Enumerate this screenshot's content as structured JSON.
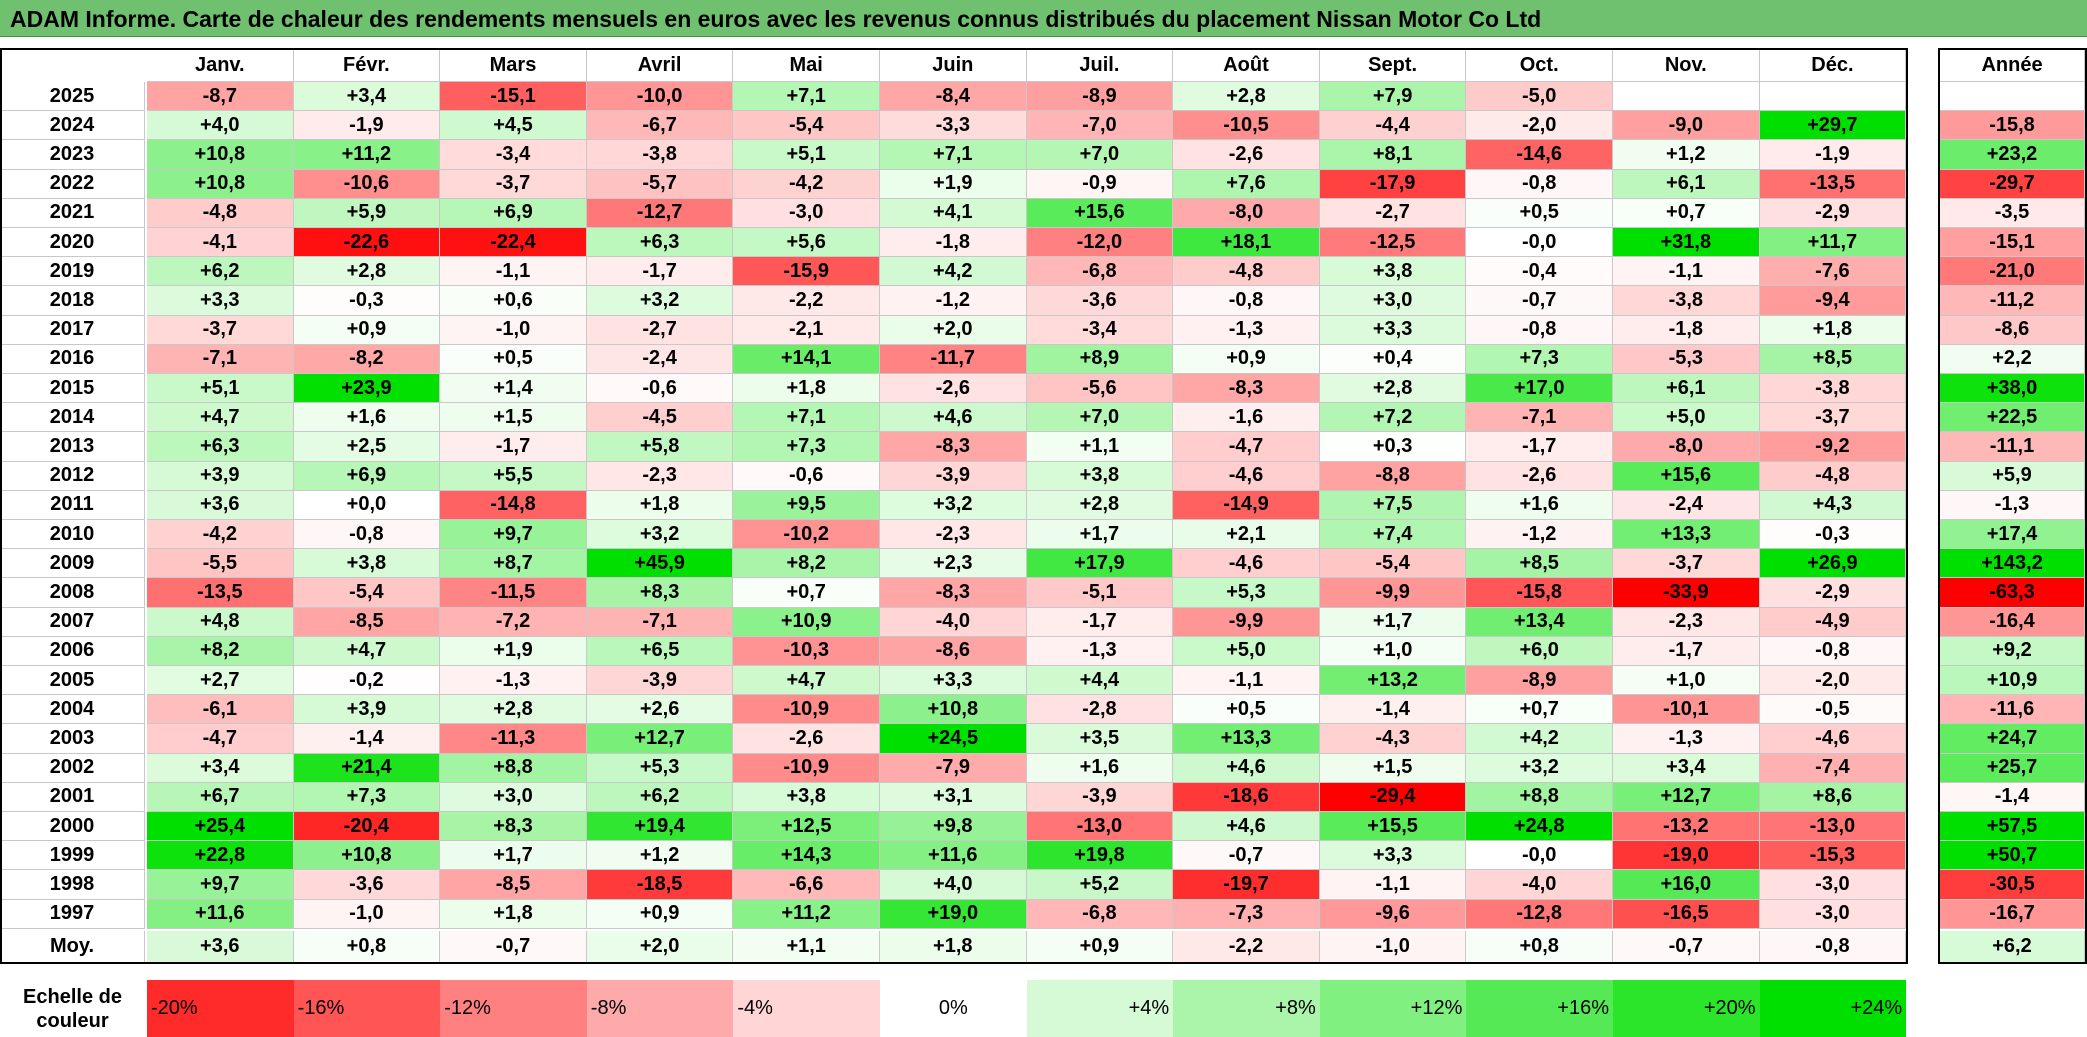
{
  "title": "ADAM Informe. Carte de chaleur des rendements mensuels en euros avec les revenus connus distribués du placement Nissan Motor Co Ltd",
  "chart_data": {
    "type": "heatmap",
    "title": "ADAM Informe. Carte de chaleur des rendements mensuels en euros avec les revenus connus distribués du placement Nissan Motor Co Ltd",
    "months": [
      "Janv.",
      "Févr.",
      "Mars",
      "Avril",
      "Mai",
      "Juin",
      "Juil.",
      "Août",
      "Sept.",
      "Oct.",
      "Nov.",
      "Déc."
    ],
    "year_header": "Année",
    "rows": [
      {
        "year": "2025",
        "values": [
          "-8,7",
          "+3,4",
          "-15,1",
          "-10,0",
          "+7,1",
          "-8,4",
          "-8,9",
          "+2,8",
          "+7,9",
          "-5,0",
          "",
          ""
        ],
        "annual": ""
      },
      {
        "year": "2024",
        "values": [
          "+4,0",
          "-1,9",
          "+4,5",
          "-6,7",
          "-5,4",
          "-3,3",
          "-7,0",
          "-10,5",
          "-4,4",
          "-2,0",
          "-9,0",
          "+29,7"
        ],
        "annual": "-15,8"
      },
      {
        "year": "2023",
        "values": [
          "+10,8",
          "+11,2",
          "-3,4",
          "-3,8",
          "+5,1",
          "+7,1",
          "+7,0",
          "-2,6",
          "+8,1",
          "-14,6",
          "+1,2",
          "-1,9"
        ],
        "annual": "+23,2"
      },
      {
        "year": "2022",
        "values": [
          "+10,8",
          "-10,6",
          "-3,7",
          "-5,7",
          "-4,2",
          "+1,9",
          "-0,9",
          "+7,6",
          "-17,9",
          "-0,8",
          "+6,1",
          "-13,5"
        ],
        "annual": "-29,7"
      },
      {
        "year": "2021",
        "values": [
          "-4,8",
          "+5,9",
          "+6,9",
          "-12,7",
          "-3,0",
          "+4,1",
          "+15,6",
          "-8,0",
          "-2,7",
          "+0,5",
          "+0,7",
          "-2,9"
        ],
        "annual": "-3,5"
      },
      {
        "year": "2020",
        "values": [
          "-4,1",
          "-22,6",
          "-22,4",
          "+6,3",
          "+5,6",
          "-1,8",
          "-12,0",
          "+18,1",
          "-12,5",
          "-0,0",
          "+31,8",
          "+11,7"
        ],
        "annual": "-15,1"
      },
      {
        "year": "2019",
        "values": [
          "+6,2",
          "+2,8",
          "-1,1",
          "-1,7",
          "-15,9",
          "+4,2",
          "-6,8",
          "-4,8",
          "+3,8",
          "-0,4",
          "-1,1",
          "-7,6"
        ],
        "annual": "-21,0"
      },
      {
        "year": "2018",
        "values": [
          "+3,3",
          "-0,3",
          "+0,6",
          "+3,2",
          "-2,2",
          "-1,2",
          "-3,6",
          "-0,8",
          "+3,0",
          "-0,7",
          "-3,8",
          "-9,4"
        ],
        "annual": "-11,2"
      },
      {
        "year": "2017",
        "values": [
          "-3,7",
          "+0,9",
          "-1,0",
          "-2,7",
          "-2,1",
          "+2,0",
          "-3,4",
          "-1,3",
          "+3,3",
          "-0,8",
          "-1,8",
          "+1,8"
        ],
        "annual": "-8,6"
      },
      {
        "year": "2016",
        "values": [
          "-7,1",
          "-8,2",
          "+0,5",
          "-2,4",
          "+14,1",
          "-11,7",
          "+8,9",
          "+0,9",
          "+0,4",
          "+7,3",
          "-5,3",
          "+8,5"
        ],
        "annual": "+2,2"
      },
      {
        "year": "2015",
        "values": [
          "+5,1",
          "+23,9",
          "+1,4",
          "-0,6",
          "+1,8",
          "-2,6",
          "-5,6",
          "-8,3",
          "+2,8",
          "+17,0",
          "+6,1",
          "-3,8"
        ],
        "annual": "+38,0"
      },
      {
        "year": "2014",
        "values": [
          "+4,7",
          "+1,6",
          "+1,5",
          "-4,5",
          "+7,1",
          "+4,6",
          "+7,0",
          "-1,6",
          "+7,2",
          "-7,1",
          "+5,0",
          "-3,7"
        ],
        "annual": "+22,5"
      },
      {
        "year": "2013",
        "values": [
          "+6,3",
          "+2,5",
          "-1,7",
          "+5,8",
          "+7,3",
          "-8,3",
          "+1,1",
          "-4,7",
          "+0,3",
          "-1,7",
          "-8,0",
          "-9,2"
        ],
        "annual": "-11,1"
      },
      {
        "year": "2012",
        "values": [
          "+3,9",
          "+6,9",
          "+5,5",
          "-2,3",
          "-0,6",
          "-3,9",
          "+3,8",
          "-4,6",
          "-8,8",
          "-2,6",
          "+15,6",
          "-4,8"
        ],
        "annual": "+5,9"
      },
      {
        "year": "2011",
        "values": [
          "+3,6",
          "+0,0",
          "-14,8",
          "+1,8",
          "+9,5",
          "+3,2",
          "+2,8",
          "-14,9",
          "+7,5",
          "+1,6",
          "-2,4",
          "+4,3"
        ],
        "annual": "-1,3"
      },
      {
        "year": "2010",
        "values": [
          "-4,2",
          "-0,8",
          "+9,7",
          "+3,2",
          "-10,2",
          "-2,3",
          "+1,7",
          "+2,1",
          "+7,4",
          "-1,2",
          "+13,3",
          "-0,3"
        ],
        "annual": "+17,4"
      },
      {
        "year": "2009",
        "values": [
          "-5,5",
          "+3,8",
          "+8,7",
          "+45,9",
          "+8,2",
          "+2,3",
          "+17,9",
          "-4,6",
          "-5,4",
          "+8,5",
          "-3,7",
          "+26,9"
        ],
        "annual": "+143,2"
      },
      {
        "year": "2008",
        "values": [
          "-13,5",
          "-5,4",
          "-11,5",
          "+8,3",
          "+0,7",
          "-8,3",
          "-5,1",
          "+5,3",
          "-9,9",
          "-15,8",
          "-33,9",
          "-2,9"
        ],
        "annual": "-63,3"
      },
      {
        "year": "2007",
        "values": [
          "+4,8",
          "-8,5",
          "-7,2",
          "-7,1",
          "+10,9",
          "-4,0",
          "-1,7",
          "-9,9",
          "+1,7",
          "+13,4",
          "-2,3",
          "-4,9"
        ],
        "annual": "-16,4"
      },
      {
        "year": "2006",
        "values": [
          "+8,2",
          "+4,7",
          "+1,9",
          "+6,5",
          "-10,3",
          "-8,6",
          "-1,3",
          "+5,0",
          "+1,0",
          "+6,0",
          "-1,7",
          "-0,8"
        ],
        "annual": "+9,2"
      },
      {
        "year": "2005",
        "values": [
          "+2,7",
          "-0,2",
          "-1,3",
          "-3,9",
          "+4,7",
          "+3,3",
          "+4,4",
          "-1,1",
          "+13,2",
          "-8,9",
          "+1,0",
          "-2,0"
        ],
        "annual": "+10,9"
      },
      {
        "year": "2004",
        "values": [
          "-6,1",
          "+3,9",
          "+2,8",
          "+2,6",
          "-10,9",
          "+10,8",
          "-2,8",
          "+0,5",
          "-1,4",
          "+0,7",
          "-10,1",
          "-0,5"
        ],
        "annual": "-11,6"
      },
      {
        "year": "2003",
        "values": [
          "-4,7",
          "-1,4",
          "-11,3",
          "+12,7",
          "-2,6",
          "+24,5",
          "+3,5",
          "+13,3",
          "-4,3",
          "+4,2",
          "-1,3",
          "-4,6"
        ],
        "annual": "+24,7"
      },
      {
        "year": "2002",
        "values": [
          "+3,4",
          "+21,4",
          "+8,8",
          "+5,3",
          "-10,9",
          "-7,9",
          "+1,6",
          "+4,6",
          "+1,5",
          "+3,2",
          "+3,4",
          "-7,4"
        ],
        "annual": "+25,7"
      },
      {
        "year": "2001",
        "values": [
          "+6,7",
          "+7,3",
          "+3,0",
          "+6,2",
          "+3,8",
          "+3,1",
          "-3,9",
          "-18,6",
          "-29,4",
          "+8,8",
          "+12,7",
          "+8,6"
        ],
        "annual": "-1,4"
      },
      {
        "year": "2000",
        "values": [
          "+25,4",
          "-20,4",
          "+8,3",
          "+19,4",
          "+12,5",
          "+9,8",
          "-13,0",
          "+4,6",
          "+15,5",
          "+24,8",
          "-13,2",
          "-13,0"
        ],
        "annual": "+57,5"
      },
      {
        "year": "1999",
        "values": [
          "+22,8",
          "+10,8",
          "+1,7",
          "+1,2",
          "+14,3",
          "+11,6",
          "+19,8",
          "-0,7",
          "+3,3",
          "-0,0",
          "-19,0",
          "-15,3"
        ],
        "annual": "+50,7"
      },
      {
        "year": "1998",
        "values": [
          "+9,7",
          "-3,6",
          "-8,5",
          "-18,5",
          "-6,6",
          "+4,0",
          "+5,2",
          "-19,7",
          "-1,1",
          "-4,0",
          "+16,0",
          "-3,0"
        ],
        "annual": "-30,5"
      },
      {
        "year": "1997",
        "values": [
          "+11,6",
          "-1,0",
          "+1,8",
          "+0,9",
          "+11,2",
          "+19,0",
          "-6,8",
          "-7,3",
          "-9,6",
          "-12,8",
          "-16,5",
          "-3,0"
        ],
        "annual": "-16,7"
      }
    ],
    "average": {
      "label": "Moy.",
      "values": [
        "+3,6",
        "+0,8",
        "-0,7",
        "+2,0",
        "+1,1",
        "+1,8",
        "+0,9",
        "-2,2",
        "-1,0",
        "+0,8",
        "-0,7",
        "-0,8"
      ],
      "annual": "+6,2"
    },
    "scale": {
      "label_line1": "Echelle de",
      "label_line2": "couleur",
      "steps": [
        "-20%",
        "-16%",
        "-12%",
        "-8%",
        "-4%",
        "0%",
        "+4%",
        "+8%",
        "+12%",
        "+16%",
        "+20%",
        "+24%"
      ]
    },
    "colors": {
      "negative_max": "#ff0000",
      "positive_max": "#00e000",
      "neutral": "#ffffff",
      "title_bg": "#6fc16f"
    }
  }
}
